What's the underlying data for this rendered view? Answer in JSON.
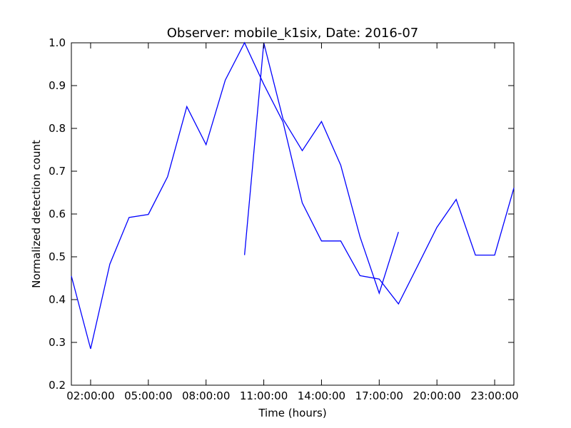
{
  "chart_data": {
    "type": "line",
    "title": "Observer: mobile_k1six, Date: 2016-07",
    "xlabel": "Time (hours)",
    "ylabel": "Normalized detection count",
    "xlim": [
      1,
      24
    ],
    "ylim": [
      0.2,
      1.0
    ],
    "x_ticks": [
      2,
      5,
      8,
      11,
      14,
      17,
      20,
      23
    ],
    "x_tick_labels": [
      "02:00:00",
      "05:00:00",
      "08:00:00",
      "11:00:00",
      "14:00:00",
      "17:00:00",
      "20:00:00",
      "23:00:00"
    ],
    "y_ticks": [
      0.2,
      0.3,
      0.4,
      0.5,
      0.6,
      0.7,
      0.8,
      0.9,
      1.0
    ],
    "y_tick_labels": [
      "0.2",
      "0.3",
      "0.4",
      "0.5",
      "0.6",
      "0.7",
      "0.8",
      "0.9",
      "1.0"
    ],
    "grid": false,
    "color": "#0000ff",
    "series": [
      {
        "x": [
          1,
          2,
          3,
          4,
          5,
          6,
          7,
          8,
          9,
          10,
          11,
          12,
          13,
          14,
          15,
          16,
          17,
          18,
          19,
          20,
          21,
          22,
          23,
          24
        ],
        "values": [
          0.455,
          0.285,
          0.483,
          0.592,
          0.599,
          0.687,
          0.851,
          0.762,
          0.913,
          1.0,
          0.903,
          0.815,
          0.626,
          0.537,
          0.537,
          0.456,
          0.448,
          0.39,
          0.479,
          0.569,
          0.634,
          0.504,
          0.504,
          0.661
        ]
      },
      {
        "x": [
          10,
          11,
          12,
          13,
          14,
          15,
          16,
          17,
          18
        ],
        "values": [
          0.504,
          1.0,
          0.822,
          0.748,
          0.816,
          0.714,
          0.547,
          0.415,
          0.558
        ]
      }
    ]
  }
}
